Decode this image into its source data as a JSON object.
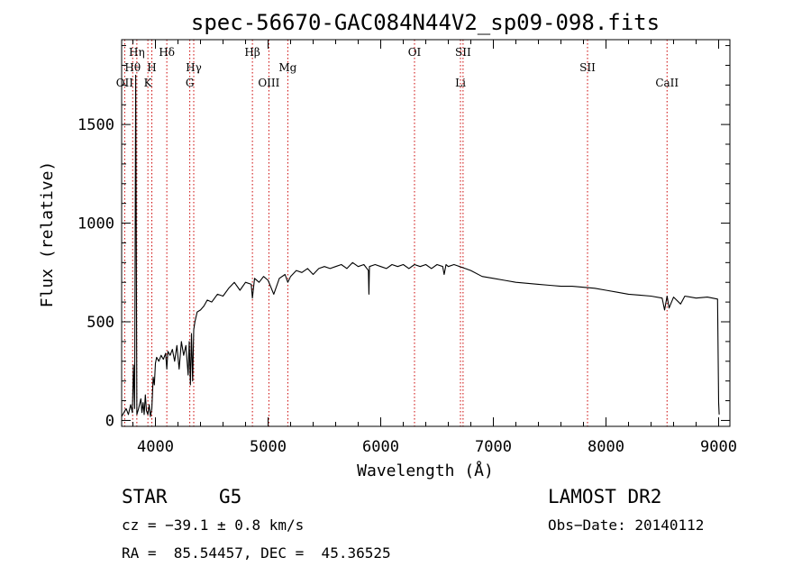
{
  "chart_data": {
    "type": "line",
    "title": "spec-56670-GAC084N44V2_sp09-098.fits",
    "xlabel": "Wavelength (Å)",
    "ylabel": "Flux (relative)",
    "xlim": [
      3700,
      9100
    ],
    "ylim": [
      -30,
      1930
    ],
    "xticks": [
      4000,
      5000,
      6000,
      7000,
      8000,
      9000
    ],
    "yticks": [
      0,
      500,
      1000,
      1500
    ],
    "grid": false,
    "line_color": "#000000",
    "marker_color": "#cc0000",
    "series": [
      {
        "x": [
          3700,
          3740,
          3760,
          3780,
          3795,
          3805,
          3815,
          3825,
          3835,
          3850,
          3870,
          3880,
          3890,
          3900,
          3910,
          3920,
          3933,
          3945,
          3955,
          3968,
          3980,
          3990,
          4000,
          4010,
          4030,
          4050,
          4070,
          4090,
          4101,
          4110,
          4130,
          4150,
          4170,
          4190,
          4210,
          4230,
          4250,
          4270,
          4290,
          4300,
          4310,
          4320,
          4330,
          4340,
          4350,
          4370,
          4400,
          4430,
          4460,
          4500,
          4550,
          4600,
          4650,
          4700,
          4750,
          4800,
          4850,
          4861,
          4880,
          4920,
          4960,
          5000,
          5050,
          5100,
          5150,
          5175,
          5200,
          5250,
          5300,
          5350,
          5400,
          5450,
          5500,
          5550,
          5600,
          5650,
          5700,
          5750,
          5800,
          5850,
          5890,
          5895,
          5900,
          5950,
          6000,
          6050,
          6100,
          6150,
          6200,
          6250,
          6300,
          6350,
          6400,
          6450,
          6500,
          6550,
          6563,
          6580,
          6600,
          6650,
          6700,
          6750,
          6800,
          6900,
          7000,
          7100,
          7200,
          7300,
          7400,
          7500,
          7600,
          7700,
          7800,
          7900,
          8000,
          8100,
          8200,
          8300,
          8400,
          8498,
          8520,
          8542,
          8560,
          8600,
          8662,
          8700,
          8800,
          8900,
          8990,
          9000,
          9005
        ],
        "values": [
          20,
          60,
          30,
          80,
          40,
          280,
          60,
          1750,
          30,
          60,
          110,
          40,
          90,
          30,
          130,
          50,
          30,
          80,
          20,
          60,
          220,
          180,
          290,
          320,
          300,
          330,
          310,
          340,
          260,
          350,
          330,
          360,
          300,
          380,
          260,
          400,
          330,
          380,
          230,
          400,
          180,
          440,
          200,
          460,
          500,
          550,
          560,
          580,
          610,
          600,
          640,
          630,
          670,
          700,
          660,
          700,
          690,
          620,
          720,
          700,
          730,
          710,
          640,
          720,
          740,
          700,
          730,
          760,
          750,
          770,
          740,
          770,
          780,
          770,
          780,
          790,
          770,
          800,
          780,
          790,
          760,
          640,
          780,
          790,
          780,
          770,
          790,
          780,
          790,
          770,
          790,
          780,
          790,
          770,
          790,
          780,
          740,
          790,
          780,
          790,
          780,
          770,
          760,
          730,
          720,
          710,
          700,
          695,
          690,
          685,
          680,
          680,
          675,
          670,
          660,
          650,
          640,
          635,
          630,
          620,
          560,
          630,
          570,
          625,
          590,
          630,
          620,
          625,
          615,
          90,
          30
        ]
      }
    ],
    "lines": [
      {
        "x": 3727,
        "label": "OII",
        "row": 3
      },
      {
        "x": 3798,
        "label": "Hθ",
        "row": 2
      },
      {
        "x": 3835,
        "label": "Hη",
        "row": 1
      },
      {
        "x": 3933,
        "label": "K",
        "row": 3
      },
      {
        "x": 3968,
        "label": "H",
        "row": 2
      },
      {
        "x": 4101,
        "label": "Hδ",
        "row": 1
      },
      {
        "x": 4305,
        "label": "G",
        "row": 3
      },
      {
        "x": 4340,
        "label": "Hγ",
        "row": 2
      },
      {
        "x": 4861,
        "label": "Hβ",
        "row": 1
      },
      {
        "x": 5007,
        "label": "OIII",
        "row": 3
      },
      {
        "x": 5175,
        "label": "Mg",
        "row": 2
      },
      {
        "x": 6300,
        "label": "OI",
        "row": 1
      },
      {
        "x": 6708,
        "label": "Li",
        "row": 3
      },
      {
        "x": 6731,
        "label": "SII",
        "row": 1
      },
      {
        "x": 7836,
        "label": "SII",
        "row": 2
      },
      {
        "x": 8542,
        "label": "CaII",
        "row": 3
      }
    ]
  },
  "info": {
    "class": "STAR",
    "subclass": "G5",
    "survey": "LAMOST DR2",
    "cz": "cz = −39.1 ± 0.8 km/s",
    "obs_date": "Obs−Date: 20140112",
    "coords": "RA =  85.54457, DEC =  45.36525"
  }
}
